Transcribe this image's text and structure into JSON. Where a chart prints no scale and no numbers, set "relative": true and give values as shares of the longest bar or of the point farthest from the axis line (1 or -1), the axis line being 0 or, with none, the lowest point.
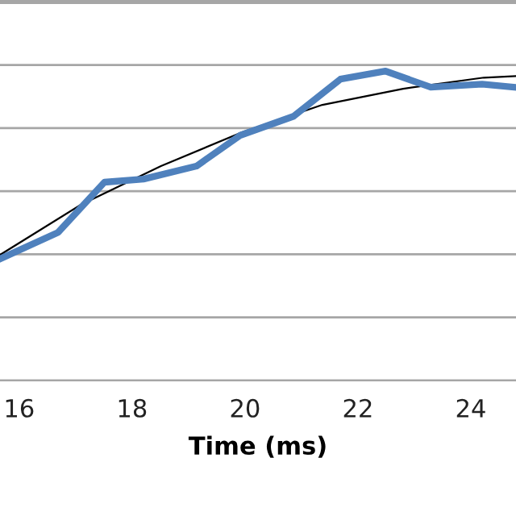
{
  "chart_data": {
    "type": "line",
    "xlabel": "Time (ms)",
    "relative": true,
    "xlim": [
      15.66,
      24.8
    ],
    "xticks": [
      16,
      18,
      20,
      22,
      24
    ],
    "grid": "y",
    "legend": false,
    "marker": "none",
    "line_style": "solid",
    "series": [
      {
        "color": "#4f81bd",
        "x": [
          15.66,
          16.69,
          17.51,
          18.2,
          19.14,
          19.91,
          20.86,
          21.69,
          22.49,
          23.29,
          24.2,
          24.77
        ],
        "values": [
          0.393,
          0.479,
          0.641,
          0.651,
          0.693,
          0.792,
          0.854,
          0.974,
          1.0,
          0.948,
          0.958,
          0.948
        ]
      },
      {
        "color": "#000000",
        "x": [
          15.66,
          17.09,
          18.51,
          19.94,
          21.37,
          22.8,
          24.23,
          24.8
        ],
        "values": [
          0.406,
          0.568,
          0.693,
          0.802,
          0.891,
          0.943,
          0.979,
          0.984
        ]
      }
    ]
  }
}
